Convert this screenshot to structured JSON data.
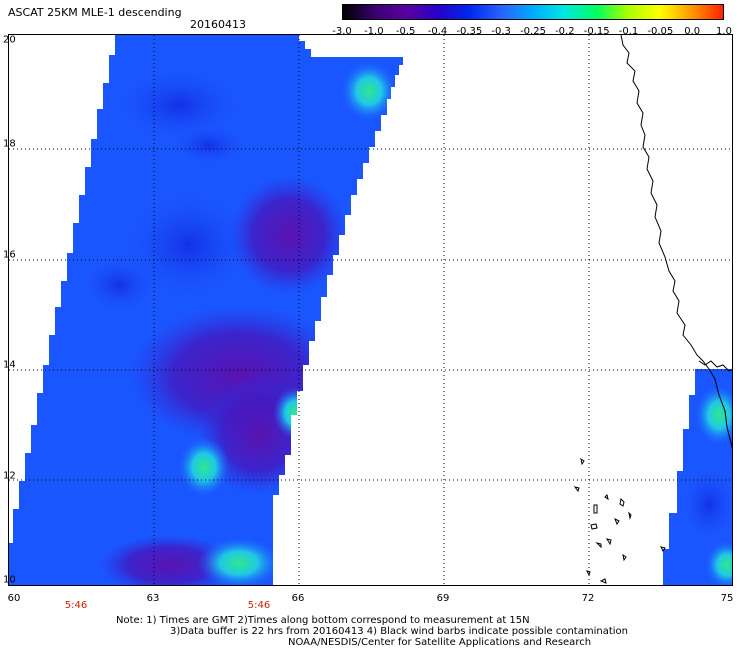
{
  "header": {
    "title": "ASCAT 25KM MLE-1 descending",
    "date": "20160413"
  },
  "colorbar": {
    "tick_labels": [
      "-3.0",
      "-1.0",
      "-0.5",
      "-0.4",
      "-0.35",
      "-0.3",
      "-0.25",
      "-0.2",
      "-0.15",
      "-0.1",
      "-0.05",
      "0.0",
      "1.0"
    ],
    "gradient_colors": [
      "#000000",
      "#3a0070",
      "#5a00a0",
      "#2800c8",
      "#0028f0",
      "#2a62ff",
      "#00aaff",
      "#00e8e0",
      "#00ff60",
      "#aaff00",
      "#ffff00",
      "#ff9900",
      "#ff2200"
    ]
  },
  "map": {
    "y_axis_labels": [
      "20",
      "18",
      "16",
      "14",
      "12",
      "10"
    ],
    "x_axis_labels": [
      "60",
      "63",
      "66",
      "69",
      "72",
      "75"
    ],
    "time_labels": [
      "5:46",
      "5:46"
    ],
    "grid_color": "#000000"
  },
  "notes": {
    "line1": "Note: 1) Times are GMT 2)Times along bottom correspond to measurement at 15N",
    "line2": "3)Data buffer is 22 hrs from 20160413 4) Black wind barbs indicate possible contamination",
    "line3": "NOAA/NESDIS/Center for Satellite Applications and Research"
  }
}
